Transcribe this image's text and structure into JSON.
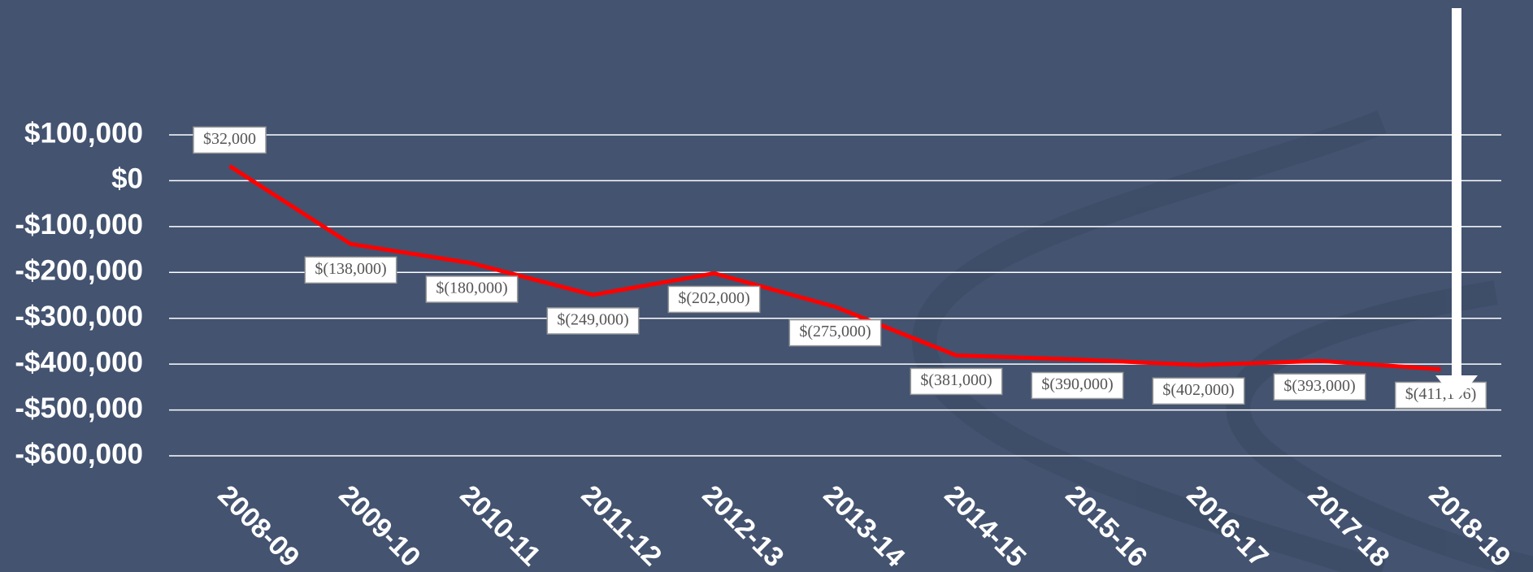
{
  "chart_data": {
    "type": "line",
    "categories": [
      "2008-09",
      "2009-10",
      "2010-11",
      "2011-12",
      "2012-13",
      "2013-14",
      "2014-15",
      "2015-16",
      "2016-17",
      "2017-18",
      "2018-19"
    ],
    "values": [
      32000,
      -138000,
      -180000,
      -249000,
      -202000,
      -275000,
      -381000,
      -390000,
      -402000,
      -393000,
      -411196
    ],
    "value_labels": [
      "$32,000",
      "$(138,000)",
      "$(180,000)",
      "$(249,000)",
      "$(202,000)",
      "$(275,000)",
      "$(381,000)",
      "$(390,000)",
      "$(402,000)",
      "$(393,000)",
      "$(411,196)"
    ],
    "color": "#ff0000",
    "ylim": [
      -600000,
      100000
    ],
    "yticks": [
      {
        "value": 100000,
        "label": "$100,000"
      },
      {
        "value": 0,
        "label": "$0"
      },
      {
        "value": -100000,
        "label": "-$100,000"
      },
      {
        "value": -200000,
        "label": "-$200,000"
      },
      {
        "value": -300000,
        "label": "-$300,000"
      },
      {
        "value": -400000,
        "label": "-$400,000"
      },
      {
        "value": -500000,
        "label": "-$500,000"
      },
      {
        "value": -600000,
        "label": "-$600,000"
      }
    ],
    "grid": true
  }
}
